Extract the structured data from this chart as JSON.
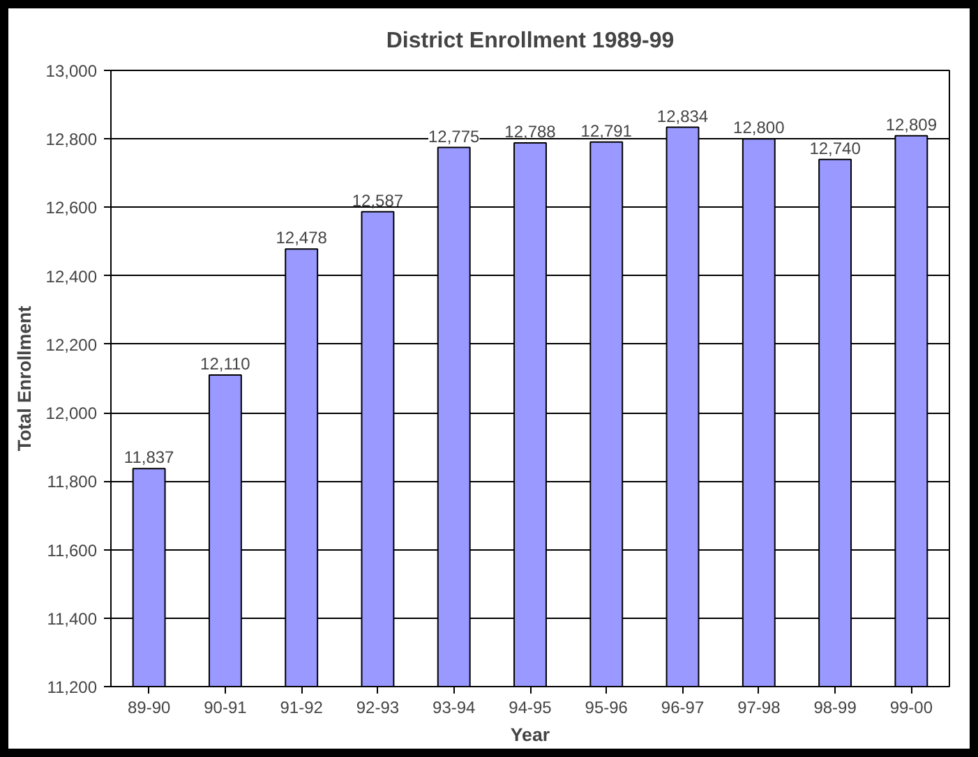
{
  "chart_data": {
    "type": "bar",
    "title": "District Enrollment 1989-99",
    "xlabel": "Year",
    "ylabel": "Total Enrollment",
    "categories": [
      "89-90",
      "90-91",
      "91-92",
      "92-93",
      "93-94",
      "94-95",
      "95-96",
      "96-97",
      "97-98",
      "98-99",
      "99-00"
    ],
    "values": [
      11837,
      12110,
      12478,
      12587,
      12775,
      12788,
      12791,
      12834,
      12800,
      12740,
      12809
    ],
    "color": "#9999ff",
    "ylim": [
      11200,
      13000
    ],
    "yticks": [
      {
        "value": 11200,
        "label": "11,200"
      },
      {
        "value": 11400,
        "label": "11,400"
      },
      {
        "value": 11600,
        "label": "11,600"
      },
      {
        "value": 11800,
        "label": "11,800"
      },
      {
        "value": 12000,
        "label": "12,000"
      },
      {
        "value": 12200,
        "label": "12,200"
      },
      {
        "value": 12400,
        "label": "12,400"
      },
      {
        "value": 12600,
        "label": "12,600"
      },
      {
        "value": 12800,
        "label": "12,800"
      },
      {
        "value": 13000,
        "label": "13,000"
      }
    ],
    "value_labels": [
      "11,837",
      "12,110",
      "12,478",
      "12,587",
      "12,775",
      "12,788",
      "12,791",
      "12,834",
      "12,800",
      "12,740",
      "12,809"
    ],
    "grid": "y"
  }
}
